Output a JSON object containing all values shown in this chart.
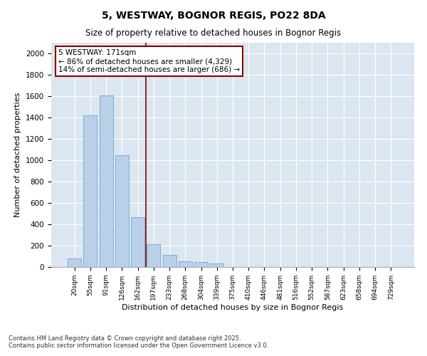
{
  "title": "5, WESTWAY, BOGNOR REGIS, PO22 8DA",
  "subtitle": "Size of property relative to detached houses in Bognor Regis",
  "xlabel": "Distribution of detached houses by size in Bognor Regis",
  "ylabel": "Number of detached properties",
  "categories": [
    "20sqm",
    "55sqm",
    "91sqm",
    "126sqm",
    "162sqm",
    "197sqm",
    "233sqm",
    "268sqm",
    "304sqm",
    "339sqm",
    "375sqm",
    "410sqm",
    "446sqm",
    "481sqm",
    "516sqm",
    "552sqm",
    "587sqm",
    "623sqm",
    "658sqm",
    "694sqm",
    "729sqm"
  ],
  "values": [
    80,
    1420,
    1610,
    1050,
    470,
    215,
    115,
    55,
    50,
    35,
    0,
    0,
    0,
    0,
    0,
    0,
    0,
    0,
    0,
    0,
    0
  ],
  "bar_color": "#b8d0e8",
  "bar_edge_color": "#6fa8d4",
  "background_color": "#dce6f0",
  "grid_color": "#ffffff",
  "vline_x": 4.5,
  "vline_color": "#8b0000",
  "annotation_text": "5 WESTWAY: 171sqm\n← 86% of detached houses are smaller (4,329)\n14% of semi-detached houses are larger (686) →",
  "annotation_box_color": "#8b0000",
  "ylim": [
    0,
    2100
  ],
  "yticks": [
    0,
    200,
    400,
    600,
    800,
    1000,
    1200,
    1400,
    1600,
    1800,
    2000
  ],
  "footer_line1": "Contains HM Land Registry data © Crown copyright and database right 2025.",
  "footer_line2": "Contains public sector information licensed under the Open Government Licence v3.0."
}
